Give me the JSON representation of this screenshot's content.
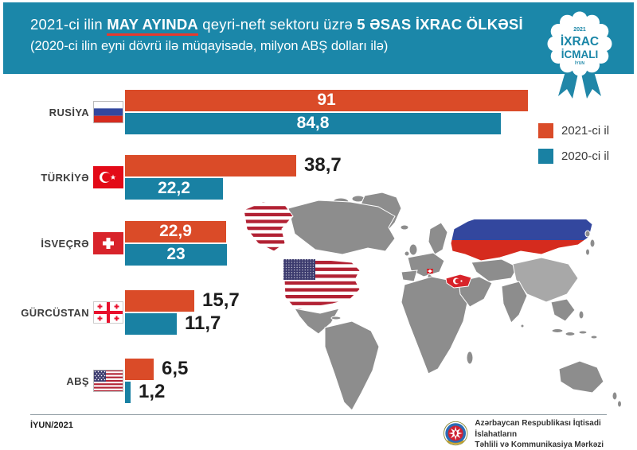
{
  "header": {
    "title_prefix": "2021-ci ilin ",
    "title_highlight": "MAY AYINDA",
    "title_mid": " qeyri-neft sektoru üzrə ",
    "title_bold": "5 ƏSAS İXRAC ÖLKƏSİ",
    "subtitle": "(2020-ci ilin eyni dövrü ilə müqayisədə, milyon ABŞ dolları ilə)",
    "badge": {
      "year": "2021",
      "line1": "İXRAC",
      "line2": "İCMALI",
      "month": "İYUN"
    }
  },
  "colors": {
    "header_bg": "#1b87a9",
    "bar_2021": "#da4b28",
    "bar_2020": "#1981a3",
    "underline_red": "#e8392e",
    "map_land": "#8d8d8d",
    "map_china": "#a8a8a8"
  },
  "legend": [
    {
      "label": "2021-ci il",
      "color": "#da4b28"
    },
    {
      "label": "2020-ci il",
      "color": "#1981a3"
    }
  ],
  "chart_data": {
    "type": "bar",
    "orientation": "horizontal",
    "title": "2021-ci ilin MAY AYINDA qeyri-neft sektoru üzrə 5 əsas ixrac ölkəsi",
    "unit": "milyon ABŞ dolları",
    "categories": [
      "RUSİYA",
      "TÜRKİYƏ",
      "İSVEÇRƏ",
      "GÜRCÜSTAN",
      "ABŞ"
    ],
    "series": [
      {
        "name": "2021-ci il",
        "color": "#da4b28",
        "values": [
          91,
          38.7,
          22.9,
          15.7,
          6.5
        ]
      },
      {
        "name": "2020-ci il",
        "color": "#1981a3",
        "values": [
          84.8,
          22.2,
          23,
          11.7,
          1.2
        ]
      }
    ],
    "xlim": [
      0,
      91
    ],
    "legend_position": "right",
    "grid": false,
    "rows": [
      {
        "label": "RUSİYA",
        "flag": "ru",
        "v2021": {
          "value": 91,
          "text": "91",
          "inside": true
        },
        "v2020": {
          "value": 84.8,
          "text": "84,8",
          "inside": true
        }
      },
      {
        "label": "TÜRKİYƏ",
        "flag": "tr",
        "v2021": {
          "value": 38.7,
          "text": "38,7",
          "inside": false
        },
        "v2020": {
          "value": 22.2,
          "text": "22,2",
          "inside": true
        }
      },
      {
        "label": "İSVEÇRƏ",
        "flag": "ch",
        "v2021": {
          "value": 22.9,
          "text": "22,9",
          "inside": true
        },
        "v2020": {
          "value": 23,
          "text": "23",
          "inside": true
        }
      },
      {
        "label": "GÜRCÜSTAN",
        "flag": "ge",
        "v2021": {
          "value": 15.7,
          "text": "15,7",
          "inside": false
        },
        "v2020": {
          "value": 11.7,
          "text": "11,7",
          "inside": false
        }
      },
      {
        "label": "ABŞ",
        "flag": "us",
        "v2021": {
          "value": 6.5,
          "text": "6,5",
          "inside": false
        },
        "v2020": {
          "value": 1.2,
          "text": "1,2",
          "inside": false
        }
      }
    ]
  },
  "footer": {
    "date": "İYUN/2021",
    "org_line1": "Azərbaycan Respublikası İqtisadi İslahatların",
    "org_line2": "Təhlili və Kommunikasiya Mərkəzi"
  }
}
